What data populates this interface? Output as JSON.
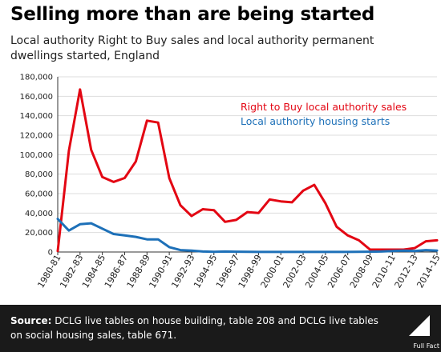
{
  "header": {
    "title": "Selling more than are being started",
    "subtitle": "Local authority Right to Buy sales and local authority permanent dwellings started, England"
  },
  "footer": {
    "source_label": "Source:",
    "source_text": "DCLG live tables on house building, table 208 and DCLG live tables on social housing sales, table 671.",
    "logo_text": "Full Fact"
  },
  "chart_data": {
    "type": "line",
    "title": "Selling more than are being started",
    "subtitle": "Local authority Right to Buy sales and local authority permanent dwellings started, England",
    "x": [
      "1980-81",
      "1981-82",
      "1982-83",
      "1983-84",
      "1984-85",
      "1985-86",
      "1986-87",
      "1987-88",
      "1988-89",
      "1989-90",
      "1990-91",
      "1991-92",
      "1992-93",
      "1993-94",
      "1994-95",
      "1995-96",
      "1996-97",
      "1997-98",
      "1998-99",
      "1999-00",
      "2000-01",
      "2001-02",
      "2002-03",
      "2003-04",
      "2004-05",
      "2005-06",
      "2006-07",
      "2007-08",
      "2008-09",
      "2009-10",
      "2010-11",
      "2011-12",
      "2012-13",
      "2013-14",
      "2014-15"
    ],
    "x_tick_labels": [
      "1980-81",
      "1982-83",
      "1984-85",
      "1986-87",
      "1988-89",
      "1990-91",
      "1992-93",
      "1994-95",
      "1996-97",
      "1998-99",
      "2000-01",
      "2002-03",
      "2004-05",
      "2006-07",
      "2008-09",
      "2010-11",
      "2012-13",
      "2014-15"
    ],
    "ylim": [
      0,
      180000
    ],
    "y_ticks": [
      "0",
      "20,000",
      "40,000",
      "60,000",
      "80,000",
      "100,000",
      "120,000",
      "140,000",
      "160,000",
      "180,000"
    ],
    "grid": true,
    "legend_position": "top-right",
    "series": [
      {
        "name": "Right to Buy local authority sales",
        "color": "#e30613",
        "values": [
          1000,
          104000,
          167000,
          105000,
          77000,
          72000,
          76000,
          93000,
          135000,
          133000,
          76000,
          48000,
          37000,
          44000,
          43000,
          31000,
          33000,
          41000,
          40000,
          54000,
          52000,
          51000,
          63000,
          69000,
          50000,
          26000,
          17000,
          12000,
          2500,
          2500,
          2500,
          2500,
          4000,
          11000,
          12000
        ]
      },
      {
        "name": "Local authority housing starts",
        "color": "#1d70b8",
        "values": [
          34000,
          22000,
          28500,
          29500,
          24000,
          18500,
          17000,
          15500,
          13000,
          13000,
          5000,
          2000,
          1500,
          500,
          200,
          500,
          300,
          200,
          100,
          100,
          100,
          100,
          100,
          100,
          100,
          100,
          100,
          200,
          300,
          500,
          1000,
          1500,
          1000,
          2000,
          1500
        ]
      }
    ]
  }
}
